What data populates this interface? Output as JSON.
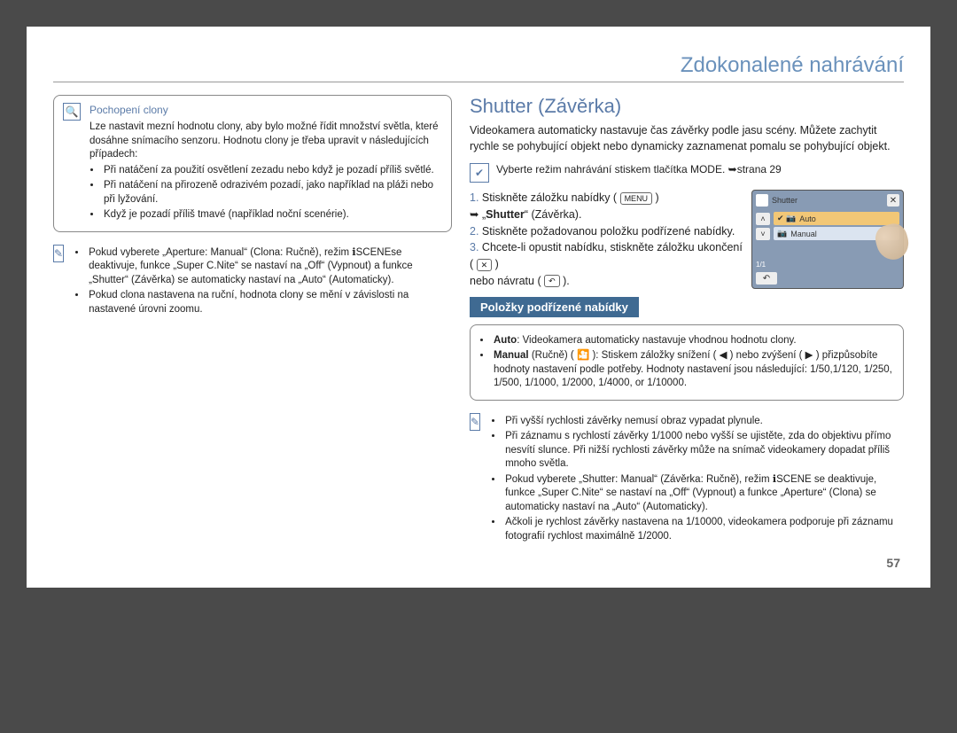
{
  "header": "Zdokonalené nahrávání",
  "pageNumber": "57",
  "left": {
    "box": {
      "title": "Pochopení clony",
      "para": "Lze nastavit mezní hodnotu clony, aby bylo možné řídit množství světla, které dosáhne snímacího senzoru. Hodnotu clony je třeba upravit v následujících případech:",
      "bullets": [
        "Při natáčení za použití osvětlení zezadu nebo když je pozadí příliš světlé.",
        "Při natáčení na přirozeně odrazivém pozadí, jako například na pláži nebo při lyžování.",
        "Když je pozadí příliš tmavé (například noční scenérie)."
      ]
    },
    "note": {
      "bullets": [
        "Pokud vyberete „Aperture: Manual“ (Clona: Ručně), režim ℹSCENEse deaktivuje, funkce „Super C.Nite“ se nastaví na „Off“ (Vypnout) a funkce „Shutter“ (Závěrka) se automaticky nastaví na „Auto“ (Automaticky).",
        "Pokud clona nastavena na ruční, hodnota clony se mění v závislosti na nastavené úrovni zoomu."
      ]
    }
  },
  "right": {
    "title": "Shutter (Závěrka)",
    "intro": "Videokamera automaticky nastavuje čas závěrky podle jasu scény. Můžete zachytit rychle se pohybující objekt nebo dynamicky zaznamenat pomalu se pohybující objekt.",
    "modeLine": "Vyberte režim nahrávání stiskem tlačítka MODE. ➥strana 29",
    "steps": [
      "Stiskněte záložku nabídky ( MENU ) ➥ „Shutter“ (Závěrka).",
      "Stiskněte požadovanou položku podřízené nabídky.",
      "Chcete-li opustit nabídku, stiskněte záložku ukončení ( ✕ ) nebo návratu ( ↶ )."
    ],
    "screen": {
      "title": "Shutter",
      "opt1": "Auto",
      "opt2": "Manual",
      "page": "1/1"
    },
    "subHeader": "Položky podřízené nabídky",
    "optionsBox": {
      "autoLabel": "Auto",
      "autoText": ": Videokamera automaticky nastavuje vhodnou hodnotu clony.",
      "manualLabel": "Manual",
      "manualParen": " (Ručně) ( 🎦 ): Stiskem záložky snížení ( ◀ ) nebo zvýšení ( ▶ ) přizpůsobíte hodnoty nastavení podle potřeby. Hodnoty nastavení jsou následující: 1/50,1/120, 1/250, 1/500, 1/1000, 1/2000, 1/4000, or 1/10000."
    },
    "note2": {
      "bullets": [
        "Při vyšší rychlosti závěrky nemusí obraz vypadat plynule.",
        "Při záznamu s rychlostí závěrky 1/1000 nebo vyšší se ujistěte, zda do objektivu přímo nesvítí slunce. Při nižší rychlosti závěrky může na snímač videokamery dopadat příliš mnoho světla.",
        "Pokud vyberete „Shutter: Manual“ (Závěrka: Ručně), režim ℹSCENE se deaktivuje, funkce „Super C.Nite“ se nastaví na „Off“ (Vypnout) a funkce „Aperture“ (Clona) se automaticky nastaví na „Auto“ (Automaticky).",
        "Ačkoli je rychlost závěrky nastavena na 1/10000, videokamera podporuje při záznamu fotografií rychlost maximálně 1/2000."
      ]
    }
  }
}
